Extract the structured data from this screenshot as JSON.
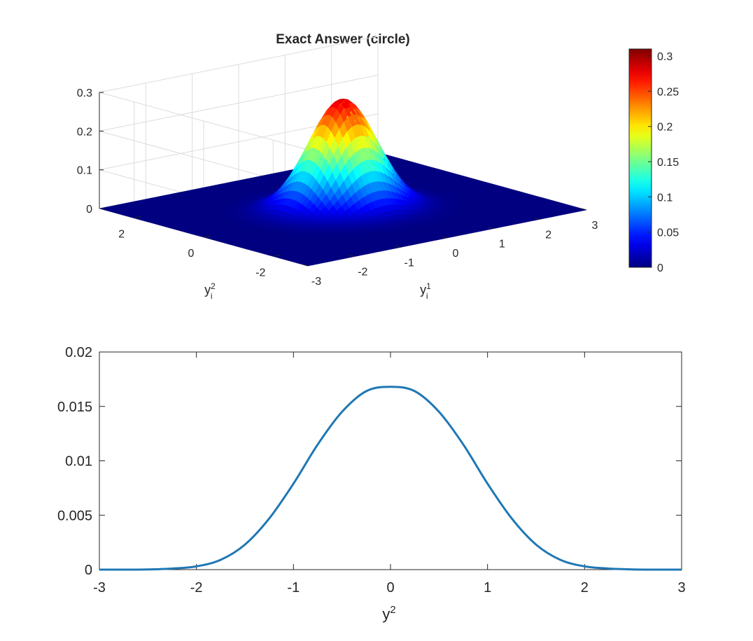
{
  "figure": {
    "colormap": "jet",
    "line_color": "#1f77b4",
    "grid_color": "#dcdcdc",
    "axis_color": "#262626"
  },
  "chart_data": [
    {
      "type": "surface",
      "title": "Exact Answer (circle)",
      "xlabel": {
        "base": "y",
        "sup": "1",
        "sub": "i"
      },
      "ylabel": {
        "base": "y",
        "sup": "2",
        "sub": "i"
      },
      "zlabel": "",
      "xlim": [
        -3,
        3
      ],
      "ylim": [
        -3,
        3
      ],
      "zlim": [
        0,
        0.3
      ],
      "xticks": [
        "-3",
        "-2",
        "-1",
        "0",
        "1",
        "2",
        "3"
      ],
      "yticks": [
        "-2",
        "0",
        "2"
      ],
      "zticks": [
        "0",
        "0.1",
        "0.2",
        "0.3"
      ],
      "grid": true,
      "function": "peak * exp(-(x^2 + y^2) / (2 * sigma^2))",
      "peak": 0.285,
      "sigma": 0.6,
      "colorbar": {
        "limits": [
          0,
          0.31
        ],
        "ticks": [
          "0",
          "0.05",
          "0.1",
          "0.15",
          "0.2",
          "0.25",
          "0.3"
        ],
        "placement": "right"
      }
    },
    {
      "type": "line",
      "title": "",
      "xlabel": {
        "base": "y",
        "sup": "2"
      },
      "ylabel": "",
      "xlim": [
        -3,
        3
      ],
      "ylim": [
        0,
        0.02
      ],
      "xticks": [
        "-3",
        "-2",
        "-1",
        "0",
        "1",
        "2",
        "3"
      ],
      "yticks": [
        "0",
        "0.005",
        "0.01",
        "0.015",
        "0.02"
      ],
      "grid": false,
      "series": [
        {
          "x": [
            -3.0,
            -2.75,
            -2.5,
            -2.25,
            -2.0,
            -1.75,
            -1.5,
            -1.25,
            -1.0,
            -0.75,
            -0.5,
            -0.25,
            0.0,
            0.25,
            0.5,
            0.75,
            1.0,
            1.25,
            1.5,
            1.75,
            2.0,
            2.25,
            2.5,
            2.75,
            3.0
          ],
          "y": [
            0.0,
            0.0,
            2e-05,
            0.0001,
            0.0003,
            0.0009,
            0.0023,
            0.0047,
            0.0079,
            0.0115,
            0.0145,
            0.0164,
            0.0168,
            0.0164,
            0.0145,
            0.0115,
            0.0079,
            0.0047,
            0.0023,
            0.0009,
            0.0003,
            0.0001,
            2e-05,
            0.0,
            0.0
          ]
        }
      ]
    }
  ]
}
